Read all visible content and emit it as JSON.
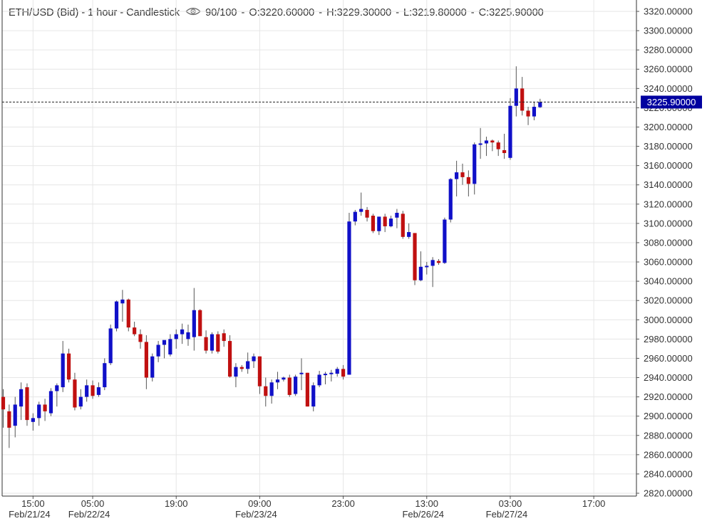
{
  "header": {
    "symbol": "ETH/USD (Bid) - 1 hour - Candlestick",
    "opacity": "90/100",
    "open": "O:3220.60000",
    "high": "H:3229.30000",
    "low": "L:3219.80000",
    "close": "C:3225.90000"
  },
  "colors": {
    "up": "#1010c8",
    "down": "#c01010",
    "grid": "#e6e6e6",
    "axis_text": "#333333",
    "price_tag_bg": "#0000a0",
    "price_tag_text": "#ffffff"
  },
  "chart_data": {
    "type": "candlestick",
    "title": "ETH/USD (Bid) - 1 hour - Candlestick",
    "y_axis_position": "right",
    "ylim": [
      2820,
      3320
    ],
    "y_ticks": [
      "2820.00000",
      "2840.00000",
      "2860.00000",
      "2880.00000",
      "2900.00000",
      "2920.00000",
      "2940.00000",
      "2960.00000",
      "2980.00000",
      "3000.00000",
      "3020.00000",
      "3040.00000",
      "3060.00000",
      "3080.00000",
      "3100.00000",
      "3120.00000",
      "3140.00000",
      "3160.00000",
      "3180.00000",
      "3200.00000",
      "3220.00000",
      "3240.00000",
      "3260.00000",
      "3280.00000",
      "3300.00000",
      "3320.00000"
    ],
    "x_ticks": [
      {
        "index": 5,
        "time": "15:00",
        "date": "Feb/21/24"
      },
      {
        "index": 15,
        "time": "05:00",
        "date": "Feb/22/24"
      },
      {
        "index": 29,
        "time": "19:00",
        "date": ""
      },
      {
        "index": 43,
        "time": "09:00",
        "date": "Feb/23/24"
      },
      {
        "index": 57,
        "time": "23:00",
        "date": ""
      },
      {
        "index": 71,
        "time": "13:00",
        "date": "Feb/26/24"
      },
      {
        "index": 85,
        "time": "03:00",
        "date": "Feb/27/24"
      },
      {
        "index": 99,
        "time": "17:00",
        "date": ""
      }
    ],
    "last_price_label": "3225.90000",
    "last_price": 3225.9,
    "grid": true,
    "candles": [
      {
        "o": 2920,
        "h": 2928,
        "l": 2888,
        "c": 2907
      },
      {
        "o": 2905,
        "h": 2912,
        "l": 2867,
        "c": 2888
      },
      {
        "o": 2890,
        "h": 2920,
        "l": 2878,
        "c": 2912
      },
      {
        "o": 2910,
        "h": 2935,
        "l": 2896,
        "c": 2928
      },
      {
        "o": 2930,
        "h": 2934,
        "l": 2890,
        "c": 2896
      },
      {
        "o": 2894,
        "h": 2903,
        "l": 2885,
        "c": 2898
      },
      {
        "o": 2898,
        "h": 2915,
        "l": 2890,
        "c": 2912
      },
      {
        "o": 2912,
        "h": 2918,
        "l": 2895,
        "c": 2905
      },
      {
        "o": 2903,
        "h": 2929,
        "l": 2900,
        "c": 2926
      },
      {
        "o": 2926,
        "h": 2934,
        "l": 2910,
        "c": 2932
      },
      {
        "o": 2930,
        "h": 2978,
        "l": 2925,
        "c": 2965
      },
      {
        "o": 2965,
        "h": 2970,
        "l": 2935,
        "c": 2938
      },
      {
        "o": 2938,
        "h": 2945,
        "l": 2906,
        "c": 2909
      },
      {
        "o": 2910,
        "h": 2928,
        "l": 2907,
        "c": 2920
      },
      {
        "o": 2920,
        "h": 2938,
        "l": 2915,
        "c": 2932
      },
      {
        "o": 2932,
        "h": 2937,
        "l": 2918,
        "c": 2921
      },
      {
        "o": 2922,
        "h": 2935,
        "l": 2920,
        "c": 2930
      },
      {
        "o": 2930,
        "h": 2960,
        "l": 2927,
        "c": 2955
      },
      {
        "o": 2955,
        "h": 2995,
        "l": 2953,
        "c": 2991
      },
      {
        "o": 2991,
        "h": 3020,
        "l": 2988,
        "c": 3019
      },
      {
        "o": 3017,
        "h": 3031,
        "l": 2998,
        "c": 3021
      },
      {
        "o": 3021,
        "h": 3022,
        "l": 2988,
        "c": 2992
      },
      {
        "o": 2992,
        "h": 2998,
        "l": 2983,
        "c": 2985
      },
      {
        "o": 2985,
        "h": 2990,
        "l": 2970,
        "c": 2977
      },
      {
        "o": 2977,
        "h": 2984,
        "l": 2928,
        "c": 2940
      },
      {
        "o": 2940,
        "h": 2965,
        "l": 2936,
        "c": 2962
      },
      {
        "o": 2962,
        "h": 2978,
        "l": 2956,
        "c": 2974
      },
      {
        "o": 2974,
        "h": 2977,
        "l": 2960,
        "c": 2979
      },
      {
        "o": 2964,
        "h": 2985,
        "l": 2962,
        "c": 2980
      },
      {
        "o": 2980,
        "h": 2990,
        "l": 2970,
        "c": 2985
      },
      {
        "o": 2985,
        "h": 2996,
        "l": 2975,
        "c": 2990
      },
      {
        "o": 2980,
        "h": 2995,
        "l": 2973,
        "c": 2987
      },
      {
        "o": 2982,
        "h": 3033,
        "l": 2968,
        "c": 3010
      },
      {
        "o": 3010,
        "h": 3011,
        "l": 2983,
        "c": 2983
      },
      {
        "o": 2982,
        "h": 2989,
        "l": 2965,
        "c": 2968
      },
      {
        "o": 2968,
        "h": 2987,
        "l": 2965,
        "c": 2985
      },
      {
        "o": 2985,
        "h": 2988,
        "l": 2965,
        "c": 2967
      },
      {
        "o": 2986,
        "h": 2990,
        "l": 2972,
        "c": 2978
      },
      {
        "o": 2978,
        "h": 2984,
        "l": 2940,
        "c": 2941
      },
      {
        "o": 2941,
        "h": 2955,
        "l": 2930,
        "c": 2951
      },
      {
        "o": 2951,
        "h": 2953,
        "l": 2946,
        "c": 2949
      },
      {
        "o": 2949,
        "h": 2966,
        "l": 2944,
        "c": 2957
      },
      {
        "o": 2957,
        "h": 2965,
        "l": 2950,
        "c": 2962
      },
      {
        "o": 2962,
        "h": 2962,
        "l": 2923,
        "c": 2931
      },
      {
        "o": 2931,
        "h": 2940,
        "l": 2910,
        "c": 2921
      },
      {
        "o": 2921,
        "h": 2938,
        "l": 2913,
        "c": 2935
      },
      {
        "o": 2935,
        "h": 2946,
        "l": 2928,
        "c": 2938
      },
      {
        "o": 2938,
        "h": 2941,
        "l": 2936,
        "c": 2940
      },
      {
        "o": 2940,
        "h": 2943,
        "l": 2920,
        "c": 2922
      },
      {
        "o": 2923,
        "h": 2943,
        "l": 2921,
        "c": 2941
      },
      {
        "o": 2944,
        "h": 2960,
        "l": 2927,
        "c": 2945
      },
      {
        "o": 2945,
        "h": 2945,
        "l": 2910,
        "c": 2910
      },
      {
        "o": 2910,
        "h": 2935,
        "l": 2905,
        "c": 2932
      },
      {
        "o": 2932,
        "h": 2947,
        "l": 2930,
        "c": 2943
      },
      {
        "o": 2943,
        "h": 2946,
        "l": 2933,
        "c": 2944
      },
      {
        "o": 2944,
        "h": 2948,
        "l": 2936,
        "c": 2945
      },
      {
        "o": 2944,
        "h": 2951,
        "l": 2941,
        "c": 2949
      },
      {
        "o": 2949,
        "h": 2953,
        "l": 2938,
        "c": 2941
      },
      {
        "o": 2943,
        "h": 3111,
        "l": 2943,
        "c": 3102
      },
      {
        "o": 3102,
        "h": 3114,
        "l": 3098,
        "c": 3112
      },
      {
        "o": 3112,
        "h": 3132,
        "l": 3108,
        "c": 3115
      },
      {
        "o": 3114,
        "h": 3117,
        "l": 3102,
        "c": 3106
      },
      {
        "o": 3108,
        "h": 3110,
        "l": 3090,
        "c": 3092
      },
      {
        "o": 3092,
        "h": 3107,
        "l": 3088,
        "c": 3107
      },
      {
        "o": 3107,
        "h": 3110,
        "l": 3091,
        "c": 3097
      },
      {
        "o": 3097,
        "h": 3108,
        "l": 3096,
        "c": 3105
      },
      {
        "o": 3106,
        "h": 3115,
        "l": 3095,
        "c": 3111
      },
      {
        "o": 3110,
        "h": 3113,
        "l": 3084,
        "c": 3086
      },
      {
        "o": 3086,
        "h": 3100,
        "l": 3084,
        "c": 3091
      },
      {
        "o": 3090,
        "h": 3090,
        "l": 3036,
        "c": 3041
      },
      {
        "o": 3041,
        "h": 3071,
        "l": 3040,
        "c": 3055
      },
      {
        "o": 3055,
        "h": 3060,
        "l": 3047,
        "c": 3056
      },
      {
        "o": 3056,
        "h": 3065,
        "l": 3034,
        "c": 3062
      },
      {
        "o": 3061,
        "h": 3063,
        "l": 3057,
        "c": 3059
      },
      {
        "o": 3059,
        "h": 3106,
        "l": 3058,
        "c": 3104
      },
      {
        "o": 3104,
        "h": 3147,
        "l": 3101,
        "c": 3146
      },
      {
        "o": 3146,
        "h": 3165,
        "l": 3128,
        "c": 3153
      },
      {
        "o": 3153,
        "h": 3162,
        "l": 3140,
        "c": 3148
      },
      {
        "o": 3148,
        "h": 3155,
        "l": 3128,
        "c": 3141
      },
      {
        "o": 3141,
        "h": 3184,
        "l": 3130,
        "c": 3182
      },
      {
        "o": 3182,
        "h": 3199,
        "l": 3167,
        "c": 3183
      },
      {
        "o": 3183,
        "h": 3190,
        "l": 3170,
        "c": 3186
      },
      {
        "o": 3186,
        "h": 3187,
        "l": 3175,
        "c": 3184
      },
      {
        "o": 3184,
        "h": 3186,
        "l": 3170,
        "c": 3177
      },
      {
        "o": 3176,
        "h": 3193,
        "l": 3167,
        "c": 3173
      },
      {
        "o": 3168,
        "h": 3230,
        "l": 3166,
        "c": 3222
      },
      {
        "o": 3222,
        "h": 3263,
        "l": 3211,
        "c": 3240
      },
      {
        "o": 3240,
        "h": 3252,
        "l": 3212,
        "c": 3217
      },
      {
        "o": 3217,
        "h": 3221,
        "l": 3202,
        "c": 3211
      },
      {
        "o": 3211,
        "h": 3226,
        "l": 3207,
        "c": 3221
      },
      {
        "o": 3220.6,
        "h": 3229.3,
        "l": 3219.8,
        "c": 3225.9
      }
    ]
  }
}
